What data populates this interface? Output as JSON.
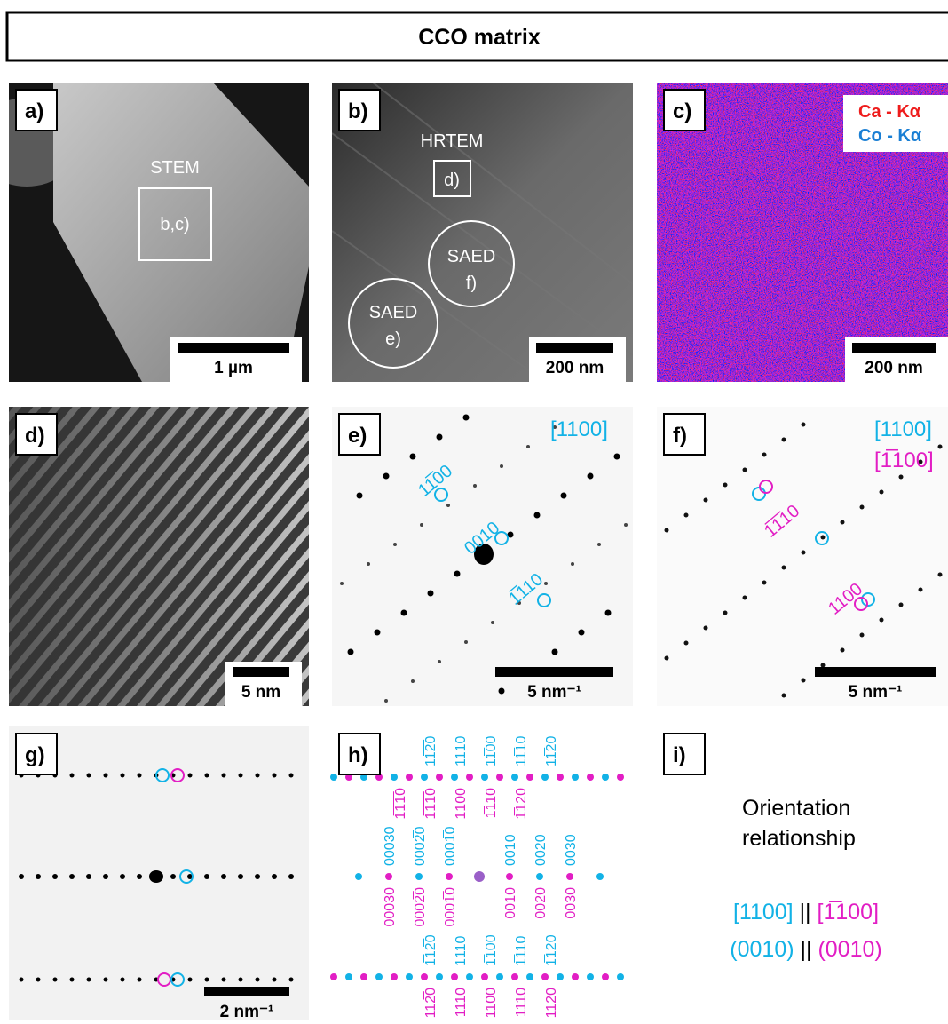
{
  "title": "CCO matrix",
  "panels": {
    "a": {
      "label": "a)",
      "region": "STEM",
      "box": "b,c)",
      "scale_bar": "1 µm"
    },
    "b": {
      "label": "b)",
      "region": "HRTEM",
      "box": "d)",
      "saed_1": "SAED",
      "saed_1_ref": "f)",
      "saed_2": "SAED",
      "saed_2_ref": "e)",
      "scale_bar": "200 nm"
    },
    "c": {
      "label": "c)",
      "legend": [
        "Ca - Kα",
        "Co - Kα"
      ],
      "scale_bar": "200 nm"
    },
    "d": {
      "label": "d)",
      "scale_bar": "5 nm"
    },
    "e": {
      "label": "e)",
      "zone": "[1100]",
      "spots": [
        "11̅00",
        "0010",
        "1̅110"
      ],
      "scale_bar": "5 nm⁻¹"
    },
    "f": {
      "label": "f)",
      "zone_cyan": "[1100]",
      "zone_magenta": "[1̅100]",
      "spots": [
        "1̅1̅10",
        "1100"
      ],
      "scale_bar": "5 nm⁻¹"
    },
    "g": {
      "label": "g)",
      "scale_bar": "2 nm⁻¹"
    },
    "h": {
      "label": "h)",
      "rows": [
        {
          "above": [
            "11̅2̅0",
            "11̅1̅0",
            "11̅00",
            "11̅10",
            "11̅20"
          ],
          "below": [
            "1̅1̅1̅0",
            "1̅1̅1̅0",
            "1̅100",
            "1̅110",
            "1̅120"
          ]
        },
        {
          "above": [
            "0003̅0",
            "0002̅0",
            "0001̅0",
            "0010",
            "0020",
            "0030"
          ],
          "below": [
            "0003̅0",
            "0002̅0",
            "0001̅0",
            "0010",
            "0020",
            "0030"
          ]
        },
        {
          "above": [
            "1̅12̅0",
            "1̅11̅0",
            "1̅100",
            "1̅110",
            "1̅120"
          ],
          "below": [
            "112̅0",
            "111̅0",
            "1100",
            "1110",
            "1120"
          ]
        }
      ]
    },
    "i": {
      "label": "i)",
      "heading": [
        "Orientation",
        "relationship"
      ],
      "relations": [
        [
          "[1100]",
          "||",
          "[1̅100]"
        ],
        [
          "(0010)",
          "||",
          "(0010)"
        ]
      ]
    }
  }
}
